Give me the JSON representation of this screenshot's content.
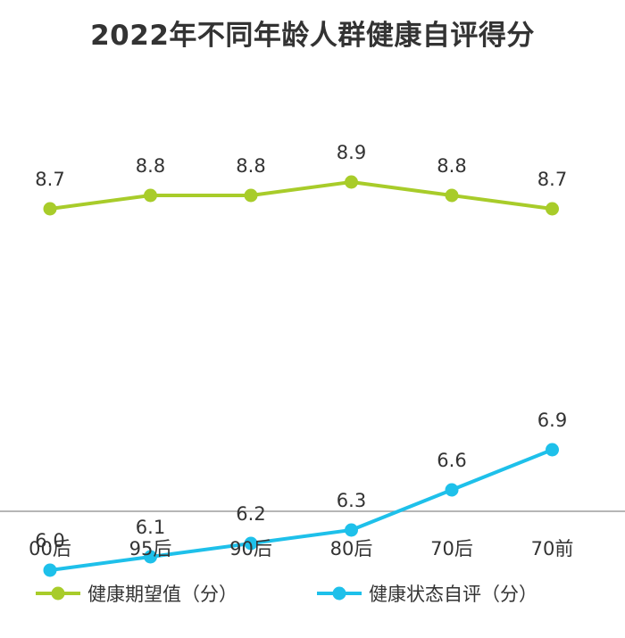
{
  "chart_data": {
    "type": "line",
    "title": "2022年不同年龄人群健康自评得分",
    "categories": [
      "00后",
      "95后",
      "90后",
      "80后",
      "70后",
      "70前"
    ],
    "series": [
      {
        "name": "健康期望值（分）",
        "values": [
          8.7,
          8.8,
          8.8,
          8.9,
          8.8,
          8.7
        ],
        "color": "#a8cc2a"
      },
      {
        "name": "健康状态自评（分）",
        "values": [
          6.0,
          6.1,
          6.2,
          6.3,
          6.6,
          6.9
        ],
        "color": "#1ec0ea"
      }
    ],
    "xlabel": "",
    "ylabel": "",
    "grid": false,
    "legend_position": "bottom",
    "colors": {
      "axis": "#9e9e9e",
      "text": "#333333"
    }
  }
}
